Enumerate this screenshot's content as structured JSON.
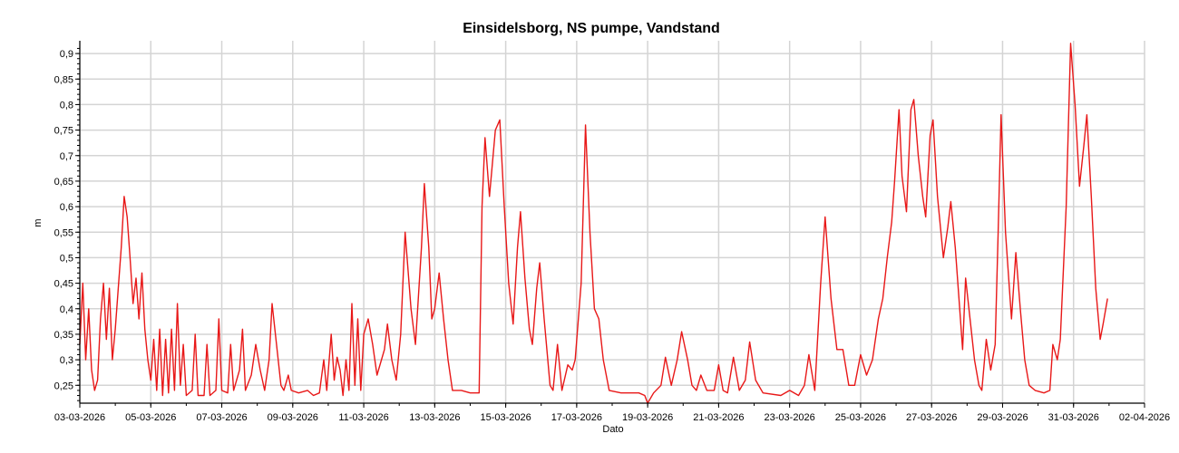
{
  "chart_data": {
    "type": "line",
    "title": "Einsidelsborg, NS pumpe, Vandstand",
    "xlabel": "Dato",
    "ylabel": "m",
    "x_ticks": [
      "03-03-2026",
      "05-03-2026",
      "07-03-2026",
      "09-03-2026",
      "11-03-2026",
      "13-03-2026",
      "15-03-2026",
      "17-03-2026",
      "19-03-2026",
      "21-03-2026",
      "23-03-2026",
      "25-03-2026",
      "27-03-2026",
      "29-03-2026",
      "31-03-2026",
      "02-04-2026"
    ],
    "y_ticks": [
      "0,25",
      "0,3",
      "0,35",
      "0,4",
      "0,45",
      "0,5",
      "0,55",
      "0,6",
      "0,65",
      "0,7",
      "0,75",
      "0,8",
      "0,85",
      "0,9"
    ],
    "xlim": [
      "03-03-2026",
      "02-04-2026"
    ],
    "ylim": [
      0.215,
      0.925
    ],
    "grid": true,
    "legend": "none",
    "series": [
      {
        "color": "#e81818",
        "points": [
          [
            "03-03-2026 00:00",
            0.33
          ],
          [
            "03-03-2026 02:00",
            0.45
          ],
          [
            "03-03-2026 04:00",
            0.3
          ],
          [
            "03-03-2026 06:00",
            0.4
          ],
          [
            "03-03-2026 08:00",
            0.28
          ],
          [
            "03-03-2026 10:00",
            0.24
          ],
          [
            "03-03-2026 12:00",
            0.26
          ],
          [
            "03-03-2026 14:00",
            0.38
          ],
          [
            "03-03-2026 16:00",
            0.45
          ],
          [
            "03-03-2026 18:00",
            0.34
          ],
          [
            "03-03-2026 20:00",
            0.44
          ],
          [
            "03-03-2026 22:00",
            0.3
          ],
          [
            "04-03-2026 00:00",
            0.36
          ],
          [
            "04-03-2026 02:00",
            0.44
          ],
          [
            "04-03-2026 04:00",
            0.52
          ],
          [
            "04-03-2026 06:00",
            0.62
          ],
          [
            "04-03-2026 08:00",
            0.58
          ],
          [
            "04-03-2026 10:00",
            0.5
          ],
          [
            "04-03-2026 12:00",
            0.41
          ],
          [
            "04-03-2026 14:00",
            0.46
          ],
          [
            "04-03-2026 16:00",
            0.38
          ],
          [
            "04-03-2026 18:00",
            0.47
          ],
          [
            "04-03-2026 20:00",
            0.36
          ],
          [
            "04-03-2026 22:00",
            0.3
          ],
          [
            "05-03-2026 00:00",
            0.26
          ],
          [
            "05-03-2026 02:00",
            0.34
          ],
          [
            "05-03-2026 04:00",
            0.24
          ],
          [
            "05-03-2026 06:00",
            0.36
          ],
          [
            "05-03-2026 08:00",
            0.23
          ],
          [
            "05-03-2026 10:00",
            0.34
          ],
          [
            "05-03-2026 12:00",
            0.235
          ],
          [
            "05-03-2026 14:00",
            0.36
          ],
          [
            "05-03-2026 16:00",
            0.24
          ],
          [
            "05-03-2026 18:00",
            0.41
          ],
          [
            "05-03-2026 20:00",
            0.25
          ],
          [
            "05-03-2026 22:00",
            0.33
          ],
          [
            "06-03-2026 00:00",
            0.23
          ],
          [
            "06-03-2026 04:00",
            0.24
          ],
          [
            "06-03-2026 06:00",
            0.35
          ],
          [
            "06-03-2026 08:00",
            0.23
          ],
          [
            "06-03-2026 12:00",
            0.23
          ],
          [
            "06-03-2026 14:00",
            0.33
          ],
          [
            "06-03-2026 16:00",
            0.23
          ],
          [
            "06-03-2026 20:00",
            0.24
          ],
          [
            "06-03-2026 22:00",
            0.38
          ],
          [
            "07-03-2026 00:00",
            0.24
          ],
          [
            "07-03-2026 04:00",
            0.235
          ],
          [
            "07-03-2026 06:00",
            0.33
          ],
          [
            "07-03-2026 08:00",
            0.24
          ],
          [
            "07-03-2026 12:00",
            0.28
          ],
          [
            "07-03-2026 14:00",
            0.36
          ],
          [
            "07-03-2026 16:00",
            0.24
          ],
          [
            "07-03-2026 20:00",
            0.27
          ],
          [
            "07-03-2026 23:00",
            0.33
          ],
          [
            "08-03-2026 02:00",
            0.28
          ],
          [
            "08-03-2026 05:00",
            0.24
          ],
          [
            "08-03-2026 08:00",
            0.3
          ],
          [
            "08-03-2026 10:00",
            0.41
          ],
          [
            "08-03-2026 13:00",
            0.33
          ],
          [
            "08-03-2026 16:00",
            0.25
          ],
          [
            "08-03-2026 18:00",
            0.24
          ],
          [
            "08-03-2026 21:00",
            0.27
          ],
          [
            "08-03-2026 23:00",
            0.24
          ],
          [
            "09-03-2026 04:00",
            0.235
          ],
          [
            "09-03-2026 10:00",
            0.24
          ],
          [
            "09-03-2026 14:00",
            0.23
          ],
          [
            "09-03-2026 18:00",
            0.235
          ],
          [
            "09-03-2026 21:00",
            0.3
          ],
          [
            "09-03-2026 23:00",
            0.24
          ],
          [
            "10-03-2026 02:00",
            0.35
          ],
          [
            "10-03-2026 04:00",
            0.26
          ],
          [
            "10-03-2026 06:00",
            0.305
          ],
          [
            "10-03-2026 08:00",
            0.28
          ],
          [
            "10-03-2026 10:00",
            0.23
          ],
          [
            "10-03-2026 12:00",
            0.3
          ],
          [
            "10-03-2026 14:00",
            0.24
          ],
          [
            "10-03-2026 16:00",
            0.41
          ],
          [
            "10-03-2026 18:00",
            0.25
          ],
          [
            "10-03-2026 20:00",
            0.38
          ],
          [
            "10-03-2026 22:00",
            0.24
          ],
          [
            "11-03-2026 00:00",
            0.35
          ],
          [
            "11-03-2026 03:00",
            0.38
          ],
          [
            "11-03-2026 06:00",
            0.33
          ],
          [
            "11-03-2026 09:00",
            0.27
          ],
          [
            "11-03-2026 14:00",
            0.32
          ],
          [
            "11-03-2026 16:00",
            0.37
          ],
          [
            "11-03-2026 19:00",
            0.3
          ],
          [
            "11-03-2026 22:00",
            0.26
          ],
          [
            "12-03-2026 01:00",
            0.35
          ],
          [
            "12-03-2026 04:00",
            0.55
          ],
          [
            "12-03-2026 08:00",
            0.4
          ],
          [
            "12-03-2026 11:00",
            0.33
          ],
          [
            "12-03-2026 15:00",
            0.52
          ],
          [
            "12-03-2026 17:00",
            0.645
          ],
          [
            "12-03-2026 20:00",
            0.52
          ],
          [
            "12-03-2026 22:00",
            0.38
          ],
          [
            "13-03-2026 00:00",
            0.4
          ],
          [
            "13-03-2026 03:00",
            0.47
          ],
          [
            "13-03-2026 06:00",
            0.38
          ],
          [
            "13-03-2026 09:00",
            0.3
          ],
          [
            "13-03-2026 12:00",
            0.24
          ],
          [
            "13-03-2026 18:00",
            0.24
          ],
          [
            "14-03-2026 00:00",
            0.235
          ],
          [
            "14-03-2026 06:00",
            0.235
          ],
          [
            "14-03-2026 08:00",
            0.6
          ],
          [
            "14-03-2026 10:00",
            0.735
          ],
          [
            "14-03-2026 13:00",
            0.62
          ],
          [
            "14-03-2026 17:00",
            0.75
          ],
          [
            "14-03-2026 20:00",
            0.77
          ],
          [
            "14-03-2026 23:00",
            0.6
          ],
          [
            "15-03-2026 02:00",
            0.45
          ],
          [
            "15-03-2026 05:00",
            0.37
          ],
          [
            "15-03-2026 08:00",
            0.52
          ],
          [
            "15-03-2026 10:00",
            0.59
          ],
          [
            "15-03-2026 13:00",
            0.46
          ],
          [
            "15-03-2026 16:00",
            0.36
          ],
          [
            "15-03-2026 18:00",
            0.33
          ],
          [
            "15-03-2026 21:00",
            0.44
          ],
          [
            "15-03-2026 23:00",
            0.49
          ],
          [
            "16-03-2026 02:00",
            0.38
          ],
          [
            "16-03-2026 06:00",
            0.25
          ],
          [
            "16-03-2026 08:00",
            0.24
          ],
          [
            "16-03-2026 11:00",
            0.33
          ],
          [
            "16-03-2026 14:00",
            0.24
          ],
          [
            "16-03-2026 18:00",
            0.29
          ],
          [
            "16-03-2026 21:00",
            0.28
          ],
          [
            "16-03-2026 23:00",
            0.3
          ],
          [
            "17-03-2026 03:00",
            0.45
          ],
          [
            "17-03-2026 06:00",
            0.76
          ],
          [
            "17-03-2026 09:00",
            0.55
          ],
          [
            "17-03-2026 12:00",
            0.4
          ],
          [
            "17-03-2026 15:00",
            0.38
          ],
          [
            "17-03-2026 18:00",
            0.3
          ],
          [
            "17-03-2026 22:00",
            0.24
          ],
          [
            "18-03-2026 06:00",
            0.235
          ],
          [
            "18-03-2026 18:00",
            0.235
          ],
          [
            "18-03-2026 22:00",
            0.23
          ],
          [
            "19-03-2026 00:00",
            0.215
          ],
          [
            "19-03-2026 04:00",
            0.235
          ],
          [
            "19-03-2026 09:00",
            0.25
          ],
          [
            "19-03-2026 12:00",
            0.305
          ],
          [
            "19-03-2026 16:00",
            0.25
          ],
          [
            "19-03-2026 20:00",
            0.3
          ],
          [
            "19-03-2026 23:00",
            0.355
          ],
          [
            "20-03-2026 03:00",
            0.3
          ],
          [
            "20-03-2026 06:00",
            0.25
          ],
          [
            "20-03-2026 09:00",
            0.24
          ],
          [
            "20-03-2026 12:00",
            0.27
          ],
          [
            "20-03-2026 16:00",
            0.24
          ],
          [
            "20-03-2026 21:00",
            0.24
          ],
          [
            "21-03-2026 00:00",
            0.29
          ],
          [
            "21-03-2026 03:00",
            0.24
          ],
          [
            "21-03-2026 06:00",
            0.235
          ],
          [
            "21-03-2026 10:00",
            0.305
          ],
          [
            "21-03-2026 14:00",
            0.24
          ],
          [
            "21-03-2026 18:00",
            0.26
          ],
          [
            "21-03-2026 21:00",
            0.335
          ],
          [
            "22-03-2026 01:00",
            0.26
          ],
          [
            "22-03-2026 06:00",
            0.235
          ],
          [
            "22-03-2026 18:00",
            0.23
          ],
          [
            "23-03-2026 00:00",
            0.24
          ],
          [
            "23-03-2026 06:00",
            0.23
          ],
          [
            "23-03-2026 10:00",
            0.25
          ],
          [
            "23-03-2026 13:00",
            0.31
          ],
          [
            "23-03-2026 17:00",
            0.24
          ],
          [
            "23-03-2026 21:00",
            0.45
          ],
          [
            "24-03-2026 00:00",
            0.58
          ],
          [
            "24-03-2026 04:00",
            0.42
          ],
          [
            "24-03-2026 08:00",
            0.32
          ],
          [
            "24-03-2026 12:00",
            0.32
          ],
          [
            "24-03-2026 16:00",
            0.25
          ],
          [
            "24-03-2026 20:00",
            0.25
          ],
          [
            "25-03-2026 00:00",
            0.31
          ],
          [
            "25-03-2026 04:00",
            0.27
          ],
          [
            "25-03-2026 08:00",
            0.3
          ],
          [
            "25-03-2026 12:00",
            0.38
          ],
          [
            "25-03-2026 15:00",
            0.42
          ],
          [
            "25-03-2026 18:00",
            0.5
          ],
          [
            "25-03-2026 21:00",
            0.57
          ],
          [
            "25-03-2026 23:00",
            0.65
          ],
          [
            "26-03-2026 02:00",
            0.79
          ],
          [
            "26-03-2026 04:00",
            0.66
          ],
          [
            "26-03-2026 07:00",
            0.59
          ],
          [
            "26-03-2026 10:00",
            0.79
          ],
          [
            "26-03-2026 12:00",
            0.81
          ],
          [
            "26-03-2026 15:00",
            0.7
          ],
          [
            "26-03-2026 18:00",
            0.62
          ],
          [
            "26-03-2026 20:00",
            0.58
          ],
          [
            "26-03-2026 23:00",
            0.74
          ],
          [
            "27-03-2026 01:00",
            0.77
          ],
          [
            "27-03-2026 04:00",
            0.62
          ],
          [
            "27-03-2026 08:00",
            0.5
          ],
          [
            "27-03-2026 11:00",
            0.56
          ],
          [
            "27-03-2026 13:00",
            0.61
          ],
          [
            "27-03-2026 16:00",
            0.52
          ],
          [
            "27-03-2026 19:00",
            0.4
          ],
          [
            "27-03-2026 21:00",
            0.32
          ],
          [
            "27-03-2026 23:00",
            0.46
          ],
          [
            "28-03-2026 02:00",
            0.38
          ],
          [
            "28-03-2026 05:00",
            0.3
          ],
          [
            "28-03-2026 08:00",
            0.25
          ],
          [
            "28-03-2026 10:00",
            0.24
          ],
          [
            "28-03-2026 13:00",
            0.34
          ],
          [
            "28-03-2026 16:00",
            0.28
          ],
          [
            "28-03-2026 19:00",
            0.33
          ],
          [
            "28-03-2026 21:00",
            0.55
          ],
          [
            "28-03-2026 23:00",
            0.78
          ],
          [
            "29-03-2026 02:00",
            0.55
          ],
          [
            "29-03-2026 06:00",
            0.38
          ],
          [
            "29-03-2026 09:00",
            0.51
          ],
          [
            "29-03-2026 12:00",
            0.4
          ],
          [
            "29-03-2026 15:00",
            0.3
          ],
          [
            "29-03-2026 18:00",
            0.25
          ],
          [
            "29-03-2026 22:00",
            0.24
          ],
          [
            "30-03-2026 04:00",
            0.235
          ],
          [
            "30-03-2026 08:00",
            0.24
          ],
          [
            "30-03-2026 10:00",
            0.33
          ],
          [
            "30-03-2026 13:00",
            0.3
          ],
          [
            "30-03-2026 15:00",
            0.34
          ],
          [
            "30-03-2026 19:00",
            0.6
          ],
          [
            "30-03-2026 22:00",
            0.92
          ],
          [
            "31-03-2026 01:00",
            0.8
          ],
          [
            "31-03-2026 04:00",
            0.64
          ],
          [
            "31-03-2026 07:00",
            0.72
          ],
          [
            "31-03-2026 09:00",
            0.78
          ],
          [
            "31-03-2026 12:00",
            0.62
          ],
          [
            "31-03-2026 15:00",
            0.44
          ],
          [
            "31-03-2026 18:00",
            0.34
          ],
          [
            "31-03-2026 20:00",
            0.37
          ],
          [
            "31-03-2026 23:00",
            0.42
          ]
        ]
      }
    ]
  }
}
